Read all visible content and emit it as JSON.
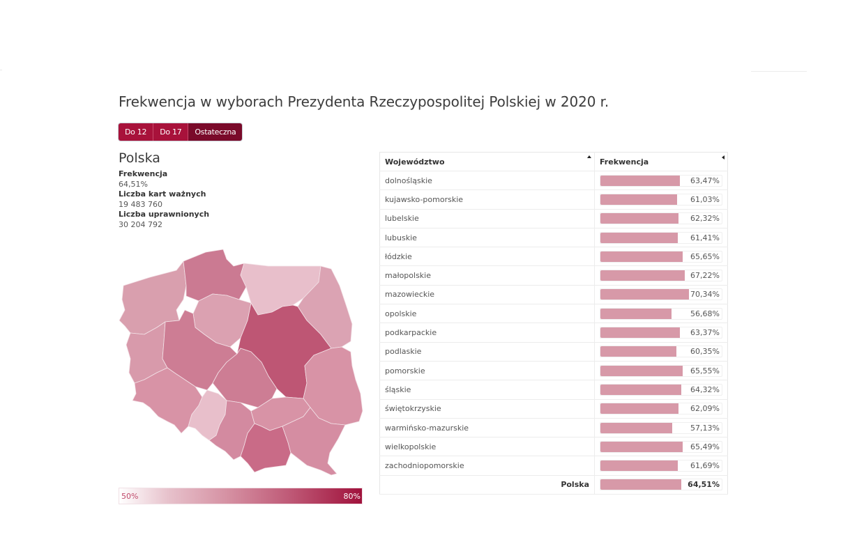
{
  "title": "Frekwencja w wyborach Prezydenta Rzeczypospolitej Polskiej w 2020 r.",
  "buttons": [
    {
      "label": "Do 12",
      "active": false
    },
    {
      "label": "Do 17",
      "active": false
    },
    {
      "label": "Ostateczna",
      "active": true
    }
  ],
  "summary": {
    "region": "Polska",
    "turnout_label": "Frekwencja",
    "turnout_value": "64,51%",
    "valid_ballots_label": "Liczba kart ważnych",
    "valid_ballots_value": "19 483 760",
    "eligible_label": "Liczba uprawnionych",
    "eligible_value": "30 204 792"
  },
  "legend": {
    "min": "50%",
    "max": "80%",
    "color_low": "#ffffff",
    "color_high": "#a0123c"
  },
  "table": {
    "headers": [
      "Województwo",
      "Frekwencja"
    ],
    "rows": [
      {
        "name": "dolnośląskie",
        "value": "63,47%"
      },
      {
        "name": "kujawsko-pomorskie",
        "value": "61,03%"
      },
      {
        "name": "lubelskie",
        "value": "62,32%"
      },
      {
        "name": "lubuskie",
        "value": "61,41%"
      },
      {
        "name": "łódzkie",
        "value": "65,65%"
      },
      {
        "name": "małopolskie",
        "value": "67,22%"
      },
      {
        "name": "mazowieckie",
        "value": "70,34%"
      },
      {
        "name": "opolskie",
        "value": "56,68%"
      },
      {
        "name": "podkarpackie",
        "value": "63,37%"
      },
      {
        "name": "podlaskie",
        "value": "60,35%"
      },
      {
        "name": "pomorskie",
        "value": "65,55%"
      },
      {
        "name": "śląskie",
        "value": "64,32%"
      },
      {
        "name": "świętokrzyskie",
        "value": "62,09%"
      },
      {
        "name": "warmińsko-mazurskie",
        "value": "57,13%"
      },
      {
        "name": "wielkopolskie",
        "value": "65,49%"
      },
      {
        "name": "zachodniopomorskie",
        "value": "61,69%"
      }
    ],
    "total": {
      "name": "Polska",
      "value": "64,51%"
    }
  },
  "chart_data": {
    "type": "bar",
    "title": "Frekwencja w wyborach Prezydenta Rzeczypospolitej Polskiej w 2020 r.",
    "xlabel": "Województwo",
    "ylabel": "Frekwencja (%)",
    "categories": [
      "dolnośląskie",
      "kujawsko-pomorskie",
      "lubelskie",
      "lubuskie",
      "łódzkie",
      "małopolskie",
      "mazowieckie",
      "opolskie",
      "podkarpackie",
      "podlaskie",
      "pomorskie",
      "śląskie",
      "świętokrzyskie",
      "warmińsko-mazurskie",
      "wielkopolskie",
      "zachodniopomorskie",
      "Polska"
    ],
    "values": [
      63.47,
      61.03,
      62.32,
      61.41,
      65.65,
      67.22,
      70.34,
      56.68,
      63.37,
      60.35,
      65.55,
      64.32,
      62.09,
      57.13,
      65.49,
      61.69,
      64.51
    ],
    "ylim": [
      0,
      100
    ],
    "color_scale": {
      "min": 50,
      "max": 80,
      "labels": [
        "50%",
        "80%"
      ]
    },
    "map": "choropleth of Poland's 16 voivodeships, colored by turnout"
  }
}
